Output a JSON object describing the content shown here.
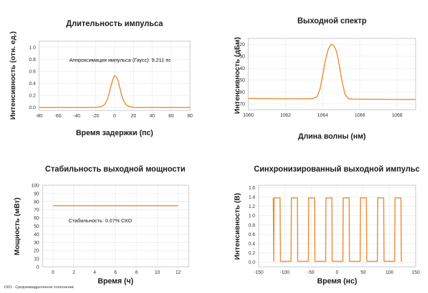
{
  "footnote": "СКО - Среднеквадратичное отклонение",
  "chart_data": [
    {
      "type": "line",
      "title": "Длительность импульса",
      "xlabel": "Время задержки (пс)",
      "ylabel": "Интенсивность (отн. ед.)",
      "xlim": [
        -80,
        80
      ],
      "ylim": [
        -0.05,
        1.1
      ],
      "xticks": [
        -80,
        -60,
        -40,
        -20,
        0,
        20,
        40,
        60,
        80
      ],
      "yticks": [
        0.0,
        0.2,
        0.4,
        0.6,
        0.8,
        1.0
      ],
      "xtick_labels": [
        "-80",
        "-60",
        "-40",
        "-20",
        "0",
        "20",
        "40",
        "60",
        "80"
      ],
      "ytick_labels": [
        "0.0",
        "0.2",
        "0.4",
        "0.6",
        "0.8",
        "1.0"
      ],
      "annotation": "Аппроксимация импульса (Гаусс): 9.211 пс",
      "series": [
        {
          "name": "pulse",
          "x": [
            -80,
            -40,
            -20,
            -15,
            -12,
            -10,
            -8,
            -6,
            -4,
            -2,
            0,
            2,
            4,
            6,
            8,
            10,
            12,
            15,
            20,
            40,
            80
          ],
          "y": [
            0.0,
            0.0,
            0.0,
            0.01,
            0.03,
            0.06,
            0.12,
            0.22,
            0.34,
            0.46,
            0.53,
            0.51,
            0.43,
            0.3,
            0.18,
            0.1,
            0.05,
            0.02,
            0.0,
            0.0,
            0.0
          ]
        }
      ]
    },
    {
      "type": "line",
      "title": "Выходной спектр",
      "xlabel": "Длина волны (нм)",
      "ylabel": "Интенсивность (дБм)",
      "xlim": [
        1060,
        1069
      ],
      "ylim": [
        -75,
        -15
      ],
      "xticks": [
        1060,
        1062,
        1064,
        1066,
        1068
      ],
      "yticks": [
        -70,
        -60,
        -50,
        -40,
        -30,
        -20
      ],
      "xtick_labels": [
        "1060",
        "1062",
        "1064",
        "1066",
        "1068"
      ],
      "ytick_labels": [
        "-70",
        "-60",
        "-50",
        "-40",
        "-30",
        "-20"
      ],
      "series": [
        {
          "name": "spectrum",
          "x": [
            1060,
            1061,
            1062,
            1063,
            1063.5,
            1063.7,
            1063.85,
            1064.0,
            1064.15,
            1064.3,
            1064.45,
            1064.6,
            1064.75,
            1064.9,
            1065.05,
            1065.2,
            1065.4,
            1065.6,
            1066,
            1067,
            1068,
            1069
          ],
          "y": [
            -65.5,
            -65.6,
            -65.7,
            -65.8,
            -65.5,
            -64,
            -58,
            -46,
            -33,
            -24,
            -20,
            -21,
            -26,
            -38,
            -52,
            -62,
            -65.8,
            -66,
            -66.1,
            -66.2,
            -66.3,
            -66.3
          ]
        }
      ]
    },
    {
      "type": "line",
      "title": "Стабильность выходной мощности",
      "xlabel": "Время (ч)",
      "ylabel": "Мощность (мВт)",
      "xlim": [
        -1,
        13
      ],
      "ylim": [
        0,
        100
      ],
      "xticks": [
        0,
        2,
        4,
        6,
        8,
        10,
        12
      ],
      "yticks": [
        0,
        10,
        20,
        30,
        40,
        50,
        60,
        70,
        80,
        90,
        100
      ],
      "xtick_labels": [
        "0",
        "2",
        "4",
        "6",
        "8",
        "10",
        "12"
      ],
      "ytick_labels": [
        "0",
        "10",
        "20",
        "30",
        "40",
        "50",
        "60",
        "70",
        "80",
        "90",
        "100"
      ],
      "annotation": "Стабильность: 0.07% СКО",
      "series": [
        {
          "name": "power",
          "x": [
            0,
            1,
            2,
            3,
            4,
            5,
            6,
            7,
            8,
            9,
            10,
            11,
            12
          ],
          "y": [
            75.0,
            75.02,
            74.98,
            75.01,
            75.0,
            74.99,
            75.02,
            75.0,
            74.98,
            75.01,
            75.0,
            74.99,
            75.0
          ]
        }
      ]
    },
    {
      "type": "line",
      "title": "Синхронизированный выходной импульс",
      "xlabel": "Время (нс)",
      "ylabel": "Интенсивность (В)",
      "xlim": [
        -150,
        150
      ],
      "ylim": [
        -0.1,
        1.65
      ],
      "xticks": [
        -150,
        -100,
        -50,
        0,
        50,
        100,
        150
      ],
      "yticks": [
        0.0,
        0.2,
        0.4,
        0.6,
        0.8,
        1.0,
        1.2,
        1.4,
        1.6
      ],
      "xtick_labels": [
        "-150",
        "-100",
        "-50",
        "0",
        "50",
        "100",
        "150"
      ],
      "ytick_labels": [
        "0.0",
        "0.2",
        "0.4",
        "0.6",
        "0.8",
        "1.0",
        "1.2",
        "1.4",
        "1.6"
      ],
      "pulse_train": {
        "start": -122,
        "end": 124,
        "high_starts": [
          -121,
          -88,
          -55,
          -22,
          11,
          44,
          77,
          110
        ],
        "high_width": 12,
        "high_level": 1.38,
        "low_level": 0.02
      }
    }
  ]
}
